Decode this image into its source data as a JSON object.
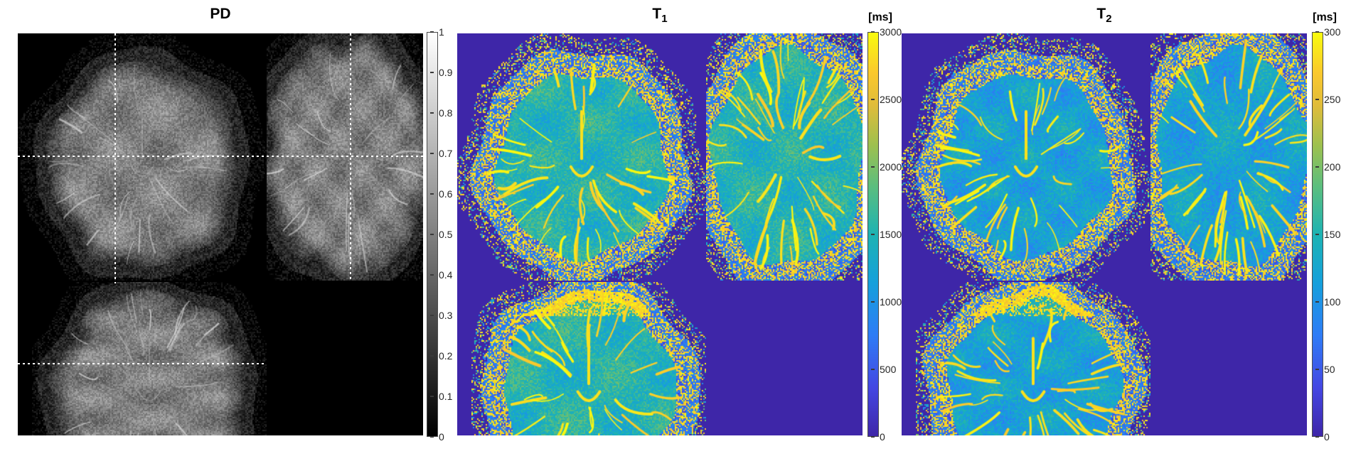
{
  "figure": {
    "background": "#ffffff",
    "panels": [
      {
        "id": "pd",
        "title": "PD",
        "title_sub": "",
        "unit_label": "",
        "colormap": "gray",
        "image_background": "#000000",
        "has_crosshair": true,
        "views": [
          "axial",
          "sagittal",
          "coronal"
        ],
        "colorbar": {
          "min": 0,
          "max": 1,
          "tick_labels": [
            "1",
            "0.9",
            "0.8",
            "0.7",
            "0.6",
            "0.5",
            "0.4",
            "0.3",
            "0.2",
            "0.1",
            "0"
          ],
          "tick_values": [
            1,
            0.9,
            0.8,
            0.7,
            0.6,
            0.5,
            0.4,
            0.3,
            0.2,
            0.1,
            0
          ]
        }
      },
      {
        "id": "t1",
        "title": "T",
        "title_sub": "1",
        "unit_label": "[ms]",
        "colormap": "parula",
        "image_background": "#3E26A8",
        "has_crosshair": false,
        "views": [
          "axial",
          "sagittal",
          "coronal"
        ],
        "colorbar": {
          "min": 0,
          "max": 3000,
          "tick_labels": [
            "3000",
            "2500",
            "2000",
            "1500",
            "1000",
            "500",
            "0"
          ],
          "tick_values": [
            3000,
            2500,
            2000,
            1500,
            1000,
            500,
            0
          ]
        }
      },
      {
        "id": "t2",
        "title": "T",
        "title_sub": "2",
        "unit_label": "[ms]",
        "colormap": "parula",
        "image_background": "#3E26A8",
        "has_crosshair": false,
        "views": [
          "axial",
          "sagittal",
          "coronal"
        ],
        "colorbar": {
          "min": 0,
          "max": 300,
          "tick_labels": [
            "300",
            "250",
            "200",
            "150",
            "100",
            "50",
            "0"
          ],
          "tick_values": [
            300,
            250,
            200,
            150,
            100,
            50,
            0
          ]
        }
      }
    ]
  },
  "chart_data": [
    {
      "type": "heatmap",
      "title": "PD",
      "subtitle": "Proton density map, three orthogonal brain slices (axial, sagittal, coronal) with white dotted crosshairs",
      "colormap": "gray",
      "value_range": [
        0,
        1
      ],
      "colorbar_ticks": [
        0,
        0.1,
        0.2,
        0.3,
        0.4,
        0.5,
        0.6,
        0.7,
        0.8,
        0.9,
        1
      ],
      "unit": "",
      "legend_position": "right-colorbar",
      "views": [
        "axial",
        "sagittal",
        "coronal"
      ]
    },
    {
      "type": "heatmap",
      "title": "T1",
      "subtitle": "T1 relaxation time map, three orthogonal brain slices (axial, sagittal, coronal)",
      "colormap": "parula",
      "value_range": [
        0,
        3000
      ],
      "colorbar_ticks": [
        0,
        500,
        1000,
        1500,
        2000,
        2500,
        3000
      ],
      "unit": "ms",
      "legend_position": "right-colorbar",
      "views": [
        "axial",
        "sagittal",
        "coronal"
      ]
    },
    {
      "type": "heatmap",
      "title": "T2",
      "subtitle": "T2 relaxation time map, three orthogonal brain slices (axial, sagittal, coronal)",
      "colormap": "parula",
      "value_range": [
        0,
        300
      ],
      "colorbar_ticks": [
        0,
        50,
        100,
        150,
        200,
        250,
        300
      ],
      "unit": "ms",
      "legend_position": "right-colorbar",
      "views": [
        "axial",
        "sagittal",
        "coronal"
      ]
    }
  ],
  "colors": {
    "parula_stops": [
      "#3E26A8",
      "#4447E2",
      "#2E7CF6",
      "#15A0DB",
      "#1DB3B3",
      "#5CBE7E",
      "#9DC04F",
      "#E0BC3A",
      "#FAC82D",
      "#F9FB0E"
    ],
    "parula_stop_positions": [
      0,
      0.12,
      0.25,
      0.38,
      0.5,
      0.62,
      0.72,
      0.82,
      0.9,
      1
    ],
    "background_blue": "#3E26A8",
    "crosshair": "#ffffff",
    "tick_text": "#262626",
    "title_text": "#000000"
  }
}
